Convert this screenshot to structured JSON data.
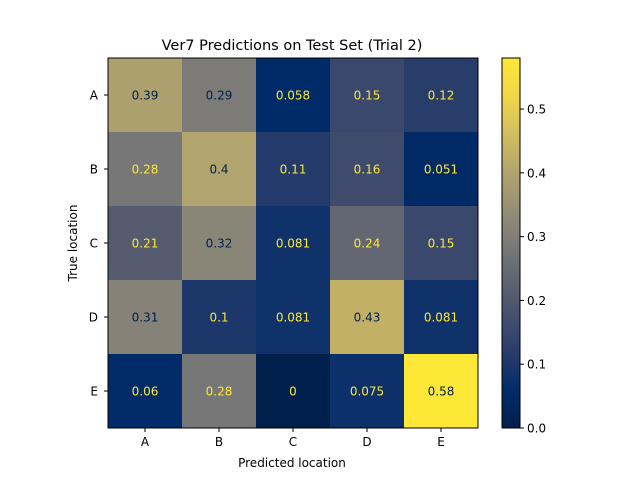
{
  "chart_data": {
    "type": "heatmap",
    "title": "Ver7 Predictions on Test Set (Trial 2)",
    "xlabel": "Predicted location",
    "ylabel": "True location",
    "x_categories": [
      "A",
      "B",
      "C",
      "D",
      "E"
    ],
    "y_categories": [
      "A",
      "B",
      "C",
      "D",
      "E"
    ],
    "values": [
      [
        0.39,
        0.29,
        0.058,
        0.15,
        0.12
      ],
      [
        0.28,
        0.4,
        0.11,
        0.16,
        0.051
      ],
      [
        0.21,
        0.32,
        0.081,
        0.24,
        0.15
      ],
      [
        0.31,
        0.1,
        0.081,
        0.43,
        0.081
      ],
      [
        0.06,
        0.28,
        0,
        0.075,
        0.58
      ]
    ],
    "cell_labels": [
      [
        "0.39",
        "0.29",
        "0.058",
        "0.15",
        "0.12"
      ],
      [
        "0.28",
        "0.4",
        "0.11",
        "0.16",
        "0.051"
      ],
      [
        "0.21",
        "0.32",
        "0.081",
        "0.24",
        "0.15"
      ],
      [
        "0.31",
        "0.1",
        "0.081",
        "0.43",
        "0.081"
      ],
      [
        "0.06",
        "0.28",
        "0",
        "0.075",
        "0.58"
      ]
    ],
    "colormap": "cividis",
    "colorbar": {
      "range": [
        0,
        0.58
      ],
      "ticks": [
        0.0,
        0.1,
        0.2,
        0.3,
        0.4,
        0.5
      ],
      "tick_labels": [
        "0.0",
        "0.1",
        "0.2",
        "0.3",
        "0.4",
        "0.5"
      ]
    },
    "text_colors": {
      "light": "#fde737",
      "dark": "#00204c"
    },
    "grid": false
  }
}
